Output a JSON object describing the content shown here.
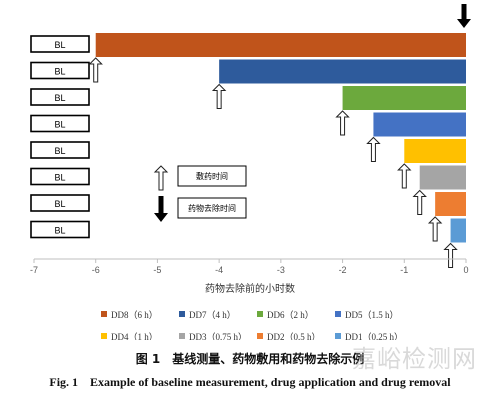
{
  "chart_data": {
    "type": "bar",
    "orientation": "horizontal",
    "xlabel": "药物去除前的小时数",
    "xlim": [
      -7,
      0
    ],
    "xticks": [
      -7,
      -6,
      -5,
      -4,
      -3,
      -2,
      -1,
      0
    ],
    "rows": [
      {
        "label": "BL",
        "start": -6.0,
        "end": 0,
        "color": "#c0541b",
        "arrow_up_at": -6.0
      },
      {
        "label": "BL",
        "start": -4.0,
        "end": 0,
        "color": "#2e5b9c",
        "arrow_up_at": -4.0
      },
      {
        "label": "BL",
        "start": -2.0,
        "end": 0,
        "color": "#6ca93d",
        "arrow_up_at": -2.0
      },
      {
        "label": "BL",
        "start": -1.5,
        "end": 0,
        "color": "#4472c4",
        "arrow_up_at": -1.5
      },
      {
        "label": "BL",
        "start": -1.0,
        "end": 0,
        "color": "#ffc000",
        "arrow_up_at": -1.0
      },
      {
        "label": "BL",
        "start": -0.75,
        "end": 0,
        "color": "#a5a5a5",
        "arrow_up_at": -0.75
      },
      {
        "label": "BL",
        "start": -0.5,
        "end": 0,
        "color": "#ed7d31",
        "arrow_up_at": -0.5
      },
      {
        "label": "BL",
        "start": -0.25,
        "end": 0,
        "color": "#5b9bd5",
        "arrow_up_at": -0.25
      }
    ],
    "removal_arrow_at": 0,
    "key": [
      {
        "symbol": "open-up-arrow",
        "text": "敷药时间"
      },
      {
        "symbol": "filled-down-arrow",
        "text": "药物去除时间"
      }
    ],
    "legend": [
      {
        "name": "DD8（6 h）",
        "color": "#c0541b"
      },
      {
        "name": "DD7（4 h）",
        "color": "#2e5b9c"
      },
      {
        "name": "DD6（2 h）",
        "color": "#6ca93d"
      },
      {
        "name": "DD5（1.5 h）",
        "color": "#4472c4"
      },
      {
        "name": "DD4（1 h）",
        "color": "#ffc000"
      },
      {
        "name": "DD3（0.75 h）",
        "color": "#a5a5a5"
      },
      {
        "name": "DD2（0.5 h）",
        "color": "#ed7d31"
      },
      {
        "name": "DD1（0.25 h）",
        "color": "#5b9bd5"
      }
    ]
  },
  "caption_cn": "图 1　基线测量、药物敷用和药物去除示例",
  "caption_en": "Fig. 1　Example of baseline measurement, drug application and drug removal",
  "watermark": "嘉峪检测网"
}
